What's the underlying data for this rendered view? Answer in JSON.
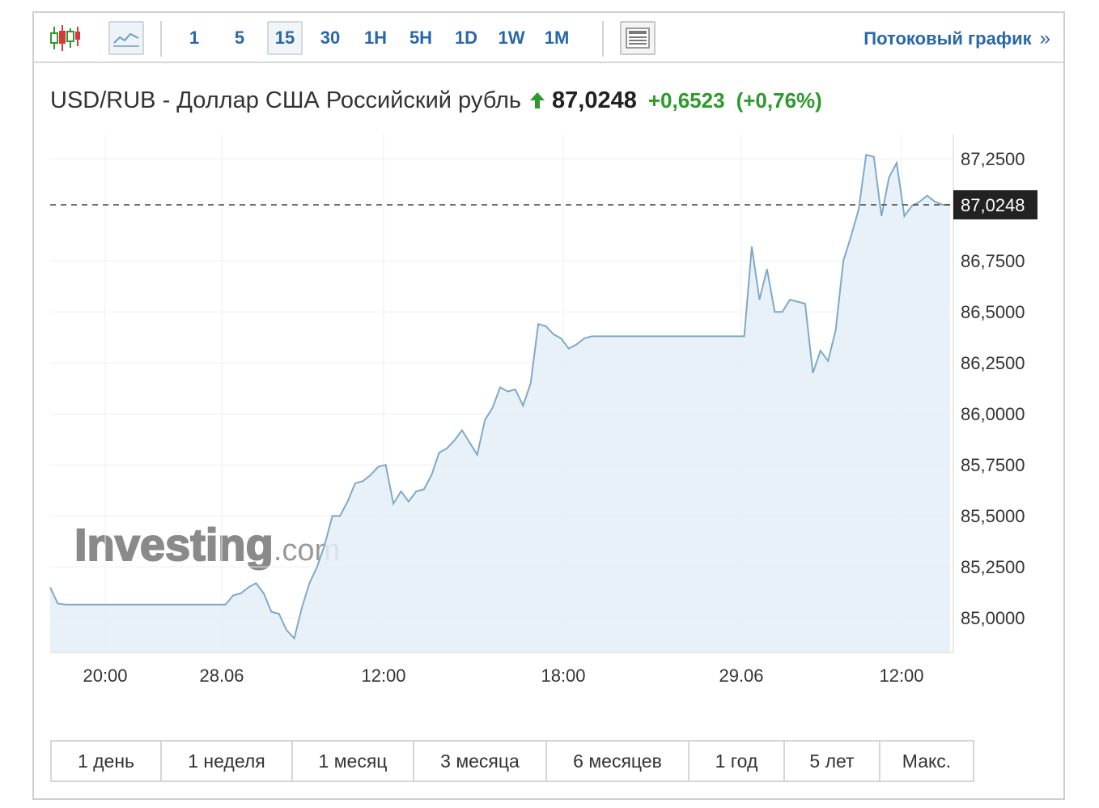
{
  "toolbar": {
    "intervals": [
      "1",
      "5",
      "15",
      "30",
      "1H",
      "5H",
      "1D",
      "1W",
      "1M"
    ],
    "active_interval": "15",
    "stream_label": "Потоковый график",
    "stream_arrow": "»",
    "icons": [
      "candlestick-icon",
      "line-chart-icon",
      "table-view-icon"
    ]
  },
  "quote": {
    "title": "USD/RUB - Доллар США Российский рубль",
    "price": "87,0248",
    "change": "+0,6523",
    "change_pct": "(+0,76%)",
    "direction_icon": "up-arrow-icon",
    "colors": {
      "up": "#2c9a2c",
      "line": "#7fa9c9",
      "fill": "#e4eef6"
    }
  },
  "watermark": {
    "brand": "Investing",
    "suffix": ".com"
  },
  "ranges": [
    "1 день",
    "1 неделя",
    "1 месяц",
    "3 месяца",
    "6 месяцев",
    "1 год",
    "5 лет",
    "Макс."
  ],
  "chart_data": {
    "type": "area",
    "title": "",
    "xlabel": "",
    "ylabel": "",
    "ylim": [
      84.83,
      87.37
    ],
    "y_ticks": [
      87.25,
      86.75,
      86.5,
      86.25,
      86.0,
      85.75,
      85.5,
      85.25,
      85.0
    ],
    "y_tick_labels": [
      "87,2500",
      "86,7500",
      "86,5000",
      "86,2500",
      "86,0000",
      "85,7500",
      "85,5000",
      "85,2500",
      "85,0000"
    ],
    "x_tick_labels": [
      "20:00",
      "28.06",
      "12:00",
      "18:00",
      "29.06",
      "12:00"
    ],
    "current_value": 87.0248,
    "current_label": "87,0248",
    "grid": true,
    "series": [
      {
        "values": [
          85.15,
          85.07,
          85.065,
          85.065,
          85.065,
          85.065,
          85.065,
          85.065,
          85.065,
          85.065,
          85.065,
          85.065,
          85.065,
          85.065,
          85.065,
          85.065,
          85.065,
          85.065,
          85.065,
          85.065,
          85.065,
          85.065,
          85.065,
          85.065,
          85.11,
          85.12,
          85.15,
          85.17,
          85.12,
          85.03,
          85.02,
          84.94,
          84.9,
          85.05,
          85.17,
          85.25,
          85.36,
          85.5,
          85.5,
          85.57,
          85.66,
          85.67,
          85.7,
          85.74,
          85.75,
          85.56,
          85.62,
          85.57,
          85.62,
          85.63,
          85.7,
          85.81,
          85.83,
          85.87,
          85.92,
          85.86,
          85.8,
          85.97,
          86.03,
          86.13,
          86.11,
          86.12,
          86.04,
          86.15,
          86.44,
          86.43,
          86.39,
          86.37,
          86.32,
          86.34,
          86.37,
          86.38,
          86.38,
          86.38,
          86.38,
          86.38,
          86.38,
          86.38,
          86.38,
          86.38,
          86.38,
          86.38,
          86.38,
          86.38,
          86.38,
          86.38,
          86.38,
          86.38,
          86.38,
          86.38,
          86.38,
          86.38,
          86.82,
          86.56,
          86.71,
          86.5,
          86.5,
          86.56,
          86.55,
          86.54,
          86.2,
          86.31,
          86.26,
          86.41,
          86.75,
          86.87,
          87.0,
          87.27,
          87.26,
          86.97,
          87.16,
          87.23,
          86.97,
          87.02,
          87.04,
          87.07,
          87.04,
          87.025,
          87.025
        ]
      }
    ]
  }
}
